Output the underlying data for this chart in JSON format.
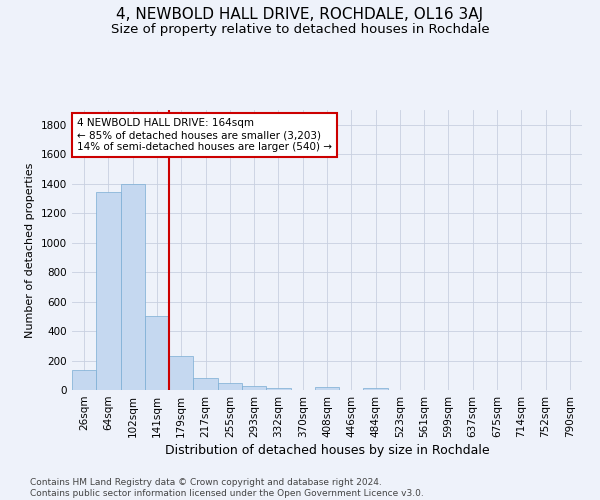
{
  "title": "4, NEWBOLD HALL DRIVE, ROCHDALE, OL16 3AJ",
  "subtitle": "Size of property relative to detached houses in Rochdale",
  "xlabel": "Distribution of detached houses by size in Rochdale",
  "ylabel": "Number of detached properties",
  "footer_line1": "Contains HM Land Registry data © Crown copyright and database right 2024.",
  "footer_line2": "Contains public sector information licensed under the Open Government Licence v3.0.",
  "bin_labels": [
    "26sqm",
    "64sqm",
    "102sqm",
    "141sqm",
    "179sqm",
    "217sqm",
    "255sqm",
    "293sqm",
    "332sqm",
    "370sqm",
    "408sqm",
    "446sqm",
    "484sqm",
    "523sqm",
    "561sqm",
    "599sqm",
    "637sqm",
    "675sqm",
    "714sqm",
    "752sqm",
    "790sqm"
  ],
  "bar_values": [
    135,
    1345,
    1400,
    500,
    230,
    80,
    48,
    25,
    15,
    0,
    20,
    0,
    15,
    0,
    0,
    0,
    0,
    0,
    0,
    0,
    0
  ],
  "bar_color": "#c5d8f0",
  "bar_edge_color": "#7aadd4",
  "ylim": [
    0,
    1900
  ],
  "yticks": [
    0,
    200,
    400,
    600,
    800,
    1000,
    1200,
    1400,
    1600,
    1800
  ],
  "vline_x": 3.5,
  "vline_color": "#cc0000",
  "annotation_text": "4 NEWBOLD HALL DRIVE: 164sqm\n← 85% of detached houses are smaller (3,203)\n14% of semi-detached houses are larger (540) →",
  "annotation_box_color": "#ffffff",
  "annotation_box_edge": "#cc0000",
  "background_color": "#eef2fa",
  "grid_color": "#c8d0e0",
  "title_fontsize": 11,
  "subtitle_fontsize": 9.5,
  "ylabel_fontsize": 8,
  "xlabel_fontsize": 9,
  "tick_fontsize": 7.5,
  "annotation_fontsize": 7.5,
  "footer_fontsize": 6.5
}
